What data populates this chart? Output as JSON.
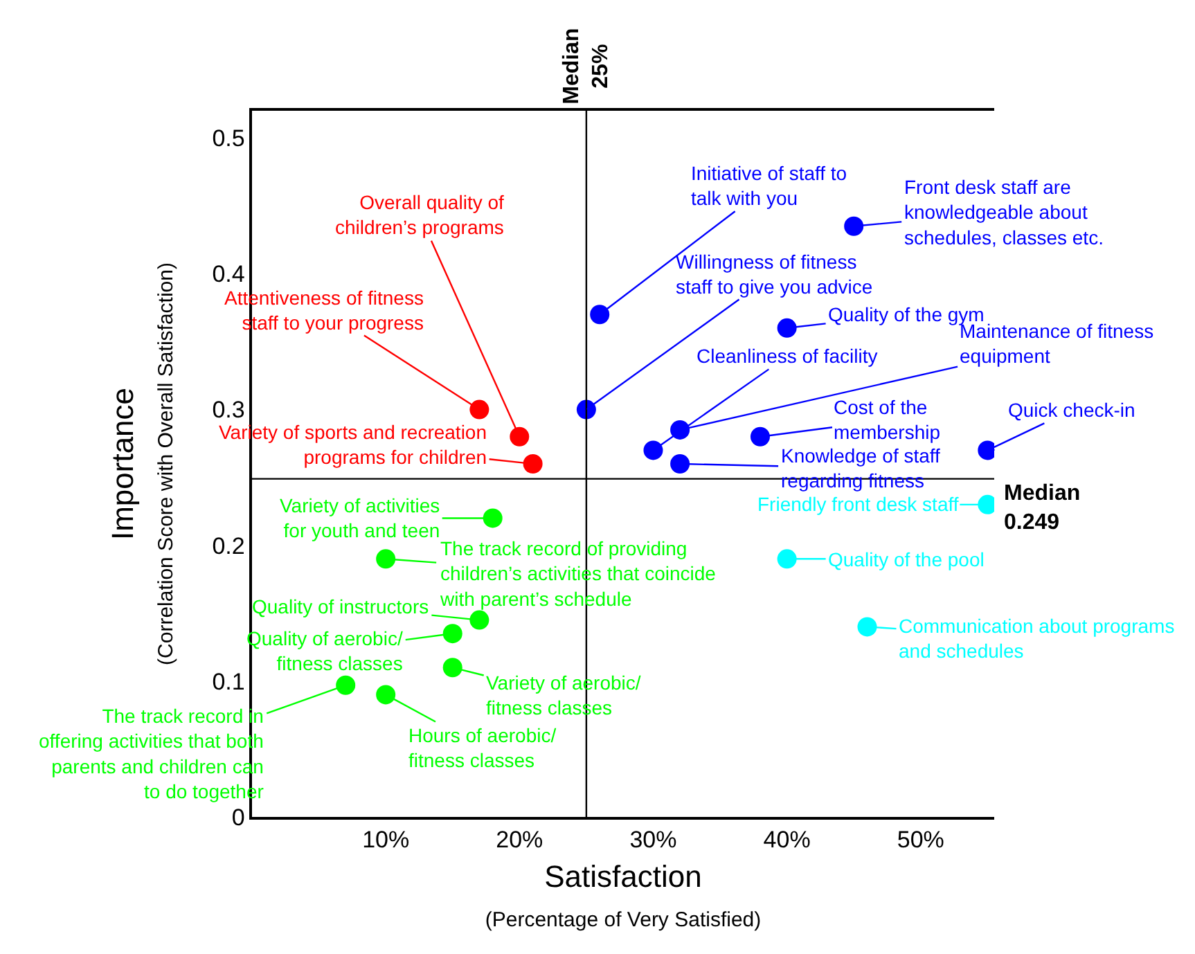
{
  "chart_data": {
    "type": "scatter",
    "xlabel": "Satisfaction\n(Percentage of Very Satisfied)",
    "ylabel": "Importance\n(Correlation Score with Overall Satisfaction)",
    "xlim": [
      0,
      55.5
    ],
    "ylim": [
      0,
      0.52
    ],
    "xticks": [
      {
        "value": 10,
        "label": "10%"
      },
      {
        "value": 20,
        "label": "20%"
      },
      {
        "value": 30,
        "label": "30%"
      },
      {
        "value": 40,
        "label": "40%"
      },
      {
        "value": 50,
        "label": "50%"
      }
    ],
    "yticks": [
      0,
      0.1,
      0.2,
      0.3,
      0.4,
      0.5
    ],
    "marker": "circle",
    "grid": false,
    "series": [
      {
        "color": "#ff0000",
        "x": [
          17,
          20,
          21
        ],
        "values": [
          0.3,
          0.28,
          0.26
        ]
      },
      {
        "color": "#0000ff",
        "x": [
          26,
          25,
          45,
          40,
          32,
          38,
          30,
          32,
          55
        ],
        "values": [
          0.37,
          0.3,
          0.435,
          0.36,
          0.285,
          0.28,
          0.27,
          0.26,
          0.27
        ]
      },
      {
        "color": "#00ffff",
        "x": [
          55,
          40,
          46
        ],
        "values": [
          0.23,
          0.19,
          0.14
        ]
      },
      {
        "color": "#00ff00",
        "x": [
          18,
          10,
          17,
          15,
          15,
          7,
          10
        ],
        "values": [
          0.22,
          0.19,
          0.145,
          0.135,
          0.11,
          0.097,
          0.09
        ]
      }
    ],
    "ref_lines": [
      {
        "axis": "x",
        "value": 25,
        "label": "Median\n25%",
        "color": "#000000"
      },
      {
        "axis": "y",
        "value": 0.249,
        "label": "Median\n0.249",
        "color": "#000000"
      }
    ],
    "annotations": [
      {
        "text": "Overall quality of\nchildren’s programs",
        "x": 20,
        "y": 0.28
      },
      {
        "text": "Attentiveness of fitness\nstaff to your progress",
        "x": 17,
        "y": 0.3
      },
      {
        "text": "Variety of sports and recreation\nprograms for children",
        "x": 21,
        "y": 0.26
      },
      {
        "text": "Initiative of staff to\ntalk with you",
        "x": 26,
        "y": 0.37
      },
      {
        "text": "Willingness of fitness\nstaff to give you advice",
        "x": 25,
        "y": 0.3
      },
      {
        "text": "Front desk staff are\nknowledgeable about\nschedules, classes etc.",
        "x": 45,
        "y": 0.435
      },
      {
        "text": "Quality of the gym",
        "x": 40,
        "y": 0.36
      },
      {
        "text": "Cleanliness of facility",
        "x": 30,
        "y": 0.27
      },
      {
        "text": "Maintenance of fitness\nequipment",
        "x": 32,
        "y": 0.285
      },
      {
        "text": "Cost of the\nmembership",
        "x": 38,
        "y": 0.28
      },
      {
        "text": "Quick check-in",
        "x": 55,
        "y": 0.27
      },
      {
        "text": "Knowledge of staff\nregarding fitness",
        "x": 32,
        "y": 0.26
      },
      {
        "text": "Friendly front desk staff",
        "x": 55,
        "y": 0.23
      },
      {
        "text": "Quality of the pool",
        "x": 40,
        "y": 0.19
      },
      {
        "text": "Communication about programs\nand schedules",
        "x": 46,
        "y": 0.14
      },
      {
        "text": "Variety of activities\nfor youth and teen",
        "x": 18,
        "y": 0.22
      },
      {
        "text": "The track record of providing\nchildren’s activities that coincide\nwith parent’s schedule",
        "x": 10,
        "y": 0.19
      },
      {
        "text": "Quality of instructors",
        "x": 17,
        "y": 0.145
      },
      {
        "text": "Quality of aerobic/\nfitness classes",
        "x": 15,
        "y": 0.135
      },
      {
        "text": "Variety of aerobic/\nfitness classes",
        "x": 15,
        "y": 0.11
      },
      {
        "text": "The track record in\noffering activities that both\nparents and children can\nto do together",
        "x": 7,
        "y": 0.097
      },
      {
        "text": "Hours of aerobic/\nfitness classes",
        "x": 10,
        "y": 0.09
      }
    ]
  }
}
